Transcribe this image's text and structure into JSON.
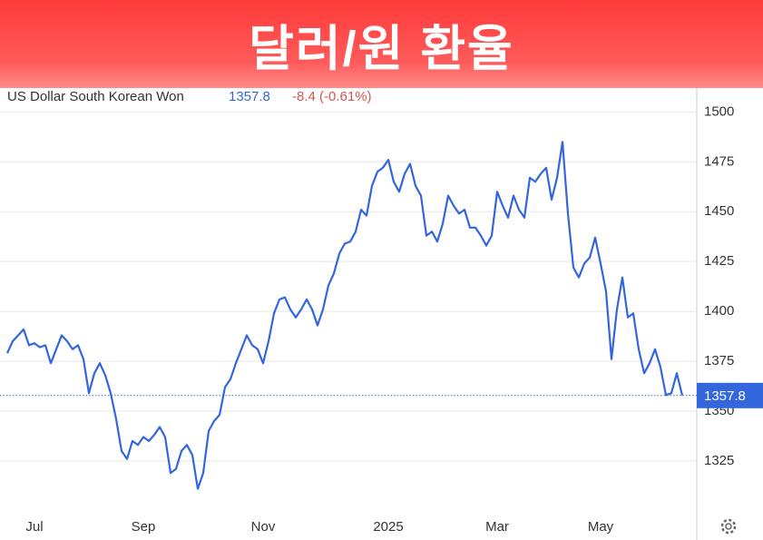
{
  "chart_data": {
    "type": "line",
    "title": "달러/원 환율",
    "change_label": "-8.4 (-0.61%)",
    "categories": [
      null,
      null,
      null,
      null,
      null,
      "Jul",
      null,
      null,
      null,
      null,
      null,
      null,
      null,
      null,
      null,
      null,
      null,
      null,
      null,
      null,
      null,
      null,
      null,
      null,
      null,
      "Sep",
      null,
      null,
      null,
      null,
      null,
      null,
      null,
      null,
      null,
      null,
      null,
      null,
      null,
      null,
      null,
      null,
      null,
      null,
      null,
      null,
      null,
      "Nov",
      null,
      null,
      null,
      null,
      null,
      null,
      null,
      null,
      null,
      null,
      null,
      null,
      null,
      null,
      null,
      null,
      null,
      null,
      null,
      null,
      null,
      null,
      "2025",
      null,
      null,
      null,
      null,
      null,
      null,
      null,
      null,
      null,
      null,
      null,
      null,
      null,
      null,
      null,
      null,
      null,
      null,
      null,
      "Mar",
      null,
      null,
      null,
      null,
      null,
      null,
      null,
      null,
      null,
      null,
      null,
      null,
      null,
      null,
      null,
      null,
      null,
      null,
      "May",
      null,
      null,
      null,
      null,
      null,
      null,
      null,
      null,
      null,
      null,
      null,
      null,
      null,
      null,
      null
    ],
    "series": [
      {
        "name": "US Dollar South Korean Won",
        "color": "#3366dd",
        "values": [
          1379,
          1385,
          1388,
          1391,
          1383,
          1384,
          1382,
          1383,
          1374,
          1381,
          1388,
          1385,
          1381,
          1383,
          1376,
          1359,
          1369,
          1374,
          1368,
          1359,
          1346,
          1330,
          1326,
          1335,
          1333,
          1337,
          1335,
          1338,
          1342,
          1337,
          1319,
          1321,
          1330,
          1333,
          1328,
          1311,
          1319,
          1340,
          1345,
          1348,
          1362,
          1366,
          1374,
          1381,
          1388,
          1383,
          1381,
          1374,
          1385,
          1399,
          1406,
          1407,
          1401,
          1397,
          1401,
          1406,
          1401,
          1393,
          1401,
          1413,
          1419,
          1429,
          1434,
          1435,
          1440,
          1451,
          1448,
          1463,
          1470,
          1472,
          1476,
          1465,
          1460,
          1469,
          1474,
          1463,
          1458,
          1438,
          1440,
          1435,
          1444,
          1458,
          1453,
          1449,
          1451,
          1442,
          1442,
          1438,
          1433,
          1438,
          1460,
          1453,
          1447,
          1458,
          1451,
          1447,
          1467,
          1465,
          1469,
          1472,
          1456,
          1467,
          1485,
          1449,
          1422,
          1417,
          1424,
          1427,
          1437,
          1424,
          1410,
          1376,
          1401,
          1417,
          1397,
          1399,
          1381,
          1369,
          1374,
          1381,
          1372,
          1358,
          1359,
          1369,
          1357.8
        ]
      }
    ],
    "ylim": [
      1299,
      1512
    ],
    "yticks": [
      1325,
      1350,
      1375,
      1400,
      1425,
      1450,
      1475,
      1500
    ],
    "grid": true,
    "change_color": "#d9534f"
  }
}
